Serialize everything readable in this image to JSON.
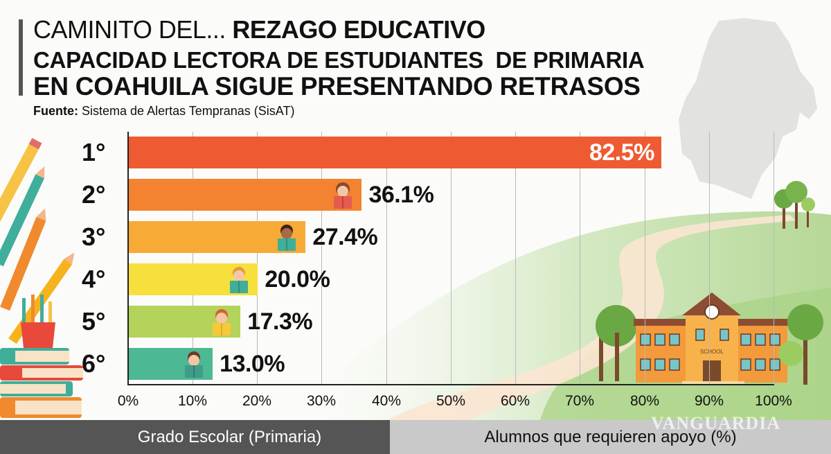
{
  "header": {
    "title_light": "CAMINITO DEL...",
    "title_bold": "REZAGO EDUCATIVO",
    "subtitle_line1": "CAPACIDAD LECTORA DE ESTUDIANTES  DE PRIMARIA",
    "subtitle_line2": "EN COAHUILA SIGUE PRESENTANDO RETRASOS",
    "source_label": "Fuente:",
    "source_text": "Sistema de Alertas Tempranas (SisAT)"
  },
  "footer": {
    "left_label": "Grado Escolar (Primaria)",
    "right_label": "Alumnos que requieren apoyo (%)",
    "watermark": "VANGUARDIA"
  },
  "colors": {
    "bar_1": "#ee5b32",
    "bar_2": "#f38331",
    "bar_3": "#f8aa36",
    "bar_4": "#f7df3c",
    "bar_5": "#b4d35a",
    "bar_6": "#4db894",
    "footer_left_bg": "#555555",
    "footer_right_bg": "#c9c9c9"
  },
  "bars": [
    {
      "label": "1°",
      "value": 82.5,
      "value_text": "82.5%"
    },
    {
      "label": "2°",
      "value": 36.1,
      "value_text": "36.1%"
    },
    {
      "label": "3°",
      "value": 27.4,
      "value_text": "27.4%"
    },
    {
      "label": "4°",
      "value": 20.0,
      "value_text": "20.0%"
    },
    {
      "label": "5°",
      "value": 17.3,
      "value_text": "17.3%"
    },
    {
      "label": "6°",
      "value": 13.0,
      "value_text": "13.0%"
    }
  ],
  "ticks": [
    "0%",
    "10%",
    "20%",
    "30%",
    "40%",
    "50%",
    "60%",
    "70%",
    "80%",
    "90%",
    "100%"
  ],
  "chart_data": {
    "type": "bar",
    "orientation": "horizontal",
    "title": "CAMINITO DEL... REZAGO EDUCATIVO",
    "subtitle": "CAPACIDAD LECTORA DE ESTUDIANTES DE PRIMARIA EN COAHUILA SIGUE PRESENTANDO RETRASOS",
    "source": "Fuente: Sistema de Alertas Tempranas (SisAT)",
    "categories": [
      "1°",
      "2°",
      "3°",
      "4°",
      "5°",
      "6°"
    ],
    "values": [
      82.5,
      36.1,
      27.4,
      20.0,
      17.3,
      13.0
    ],
    "data_labels": [
      "82.5%",
      "36.1%",
      "27.4%",
      "20.0%",
      "17.3%",
      "13.0%"
    ],
    "xlabel": "Alumnos que requieren apoyo (%)",
    "ylabel": "Grado Escolar (Primaria)",
    "xlim": [
      0,
      100
    ],
    "x_ticks": [
      "0%",
      "10%",
      "20%",
      "30%",
      "40%",
      "50%",
      "60%",
      "70%",
      "80%",
      "90%",
      "100%"
    ],
    "grid": true,
    "legend": null
  }
}
